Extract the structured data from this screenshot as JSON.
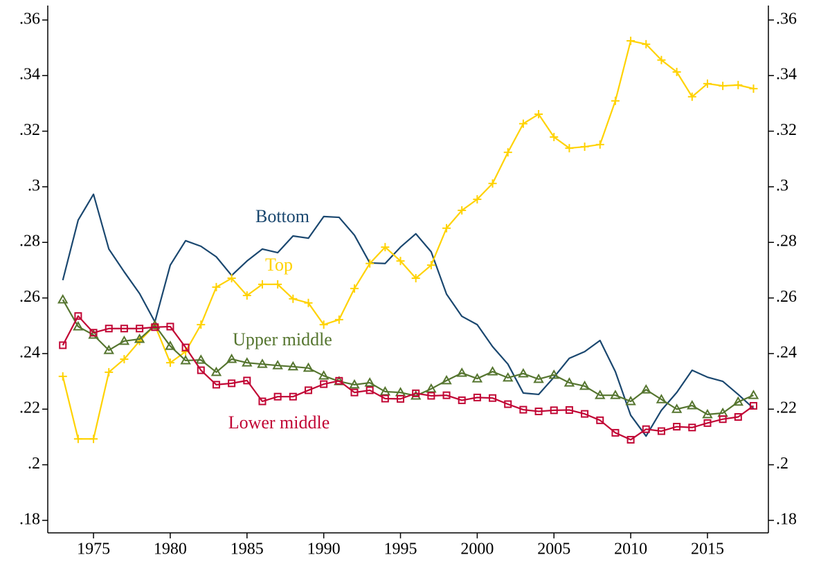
{
  "chart_data": {
    "type": "line",
    "x": [
      1973,
      1974,
      1975,
      1976,
      1977,
      1978,
      1979,
      1980,
      1981,
      1982,
      1983,
      1984,
      1985,
      1986,
      1987,
      1988,
      1989,
      1990,
      1991,
      1992,
      1993,
      1994,
      1995,
      1996,
      1997,
      1998,
      1999,
      2000,
      2001,
      2002,
      2003,
      2004,
      2005,
      2006,
      2007,
      2008,
      2009,
      2010,
      2011,
      2012,
      2013,
      2014,
      2015,
      2016,
      2017,
      2018
    ],
    "series": [
      {
        "name": "Bottom",
        "color": "#1a476f",
        "marker": "none",
        "values": [
          0.2664,
          0.288,
          0.2973,
          0.2776,
          0.2694,
          0.2616,
          0.2514,
          0.2718,
          0.2806,
          0.2786,
          0.2748,
          0.2681,
          0.2733,
          0.2776,
          0.2763,
          0.2823,
          0.2815,
          0.2893,
          0.289,
          0.2826,
          0.2726,
          0.2724,
          0.2783,
          0.2831,
          0.2766,
          0.2614,
          0.2534,
          0.2504,
          0.2425,
          0.2362,
          0.2258,
          0.2253,
          0.2315,
          0.2383,
          0.2407,
          0.2447,
          0.2335,
          0.2178,
          0.2103,
          0.2196,
          0.226,
          0.234,
          0.2315,
          0.23,
          0.2253,
          0.2203
        ]
      },
      {
        "name": "Top",
        "color": "#ffd200",
        "marker": "plus",
        "values": [
          0.2318,
          0.2093,
          0.2093,
          0.2333,
          0.238,
          0.2445,
          0.2502,
          0.2367,
          0.2407,
          0.2504,
          0.2639,
          0.2671,
          0.2609,
          0.2649,
          0.2649,
          0.2597,
          0.2582,
          0.2504,
          0.2522,
          0.2634,
          0.2724,
          0.2783,
          0.2733,
          0.2671,
          0.2718,
          0.2851,
          0.2915,
          0.2955,
          0.3012,
          0.3124,
          0.3227,
          0.3261,
          0.3179,
          0.3139,
          0.3144,
          0.3152,
          0.3309,
          0.3525,
          0.3513,
          0.3456,
          0.3413,
          0.3324,
          0.3371,
          0.3363,
          0.3366,
          0.3353
        ]
      },
      {
        "name": "Upper middle",
        "color": "#55752f",
        "marker": "triangle",
        "values": [
          0.2594,
          0.2497,
          0.2467,
          0.2412,
          0.2445,
          0.2452,
          0.2502,
          0.2427,
          0.2375,
          0.2377,
          0.2333,
          0.238,
          0.2367,
          0.2362,
          0.2357,
          0.2353,
          0.2348,
          0.232,
          0.23,
          0.2288,
          0.2295,
          0.2263,
          0.226,
          0.2248,
          0.2273,
          0.2303,
          0.233,
          0.231,
          0.2335,
          0.2313,
          0.2328,
          0.2308,
          0.2323,
          0.2295,
          0.2283,
          0.225,
          0.225,
          0.2228,
          0.227,
          0.2235,
          0.22,
          0.2213,
          0.2181,
          0.2186,
          0.2226,
          0.225
        ]
      },
      {
        "name": "Lower middle",
        "color": "#c10534",
        "marker": "square",
        "values": [
          0.243,
          0.2535,
          0.2475,
          0.249,
          0.249,
          0.249,
          0.2495,
          0.2497,
          0.2422,
          0.234,
          0.2288,
          0.2293,
          0.2303,
          0.2228,
          0.2245,
          0.2245,
          0.2268,
          0.229,
          0.2302,
          0.226,
          0.2268,
          0.2238,
          0.2237,
          0.2257,
          0.2248,
          0.225,
          0.2232,
          0.2242,
          0.224,
          0.2218,
          0.2198,
          0.2192,
          0.2196,
          0.2197,
          0.2183,
          0.216,
          0.2115,
          0.209,
          0.2128,
          0.2121,
          0.2137,
          0.2134,
          0.215,
          0.2164,
          0.2172,
          0.2212
        ]
      }
    ],
    "xlim": [
      1972.02,
      2018.97
    ],
    "xticks": [
      1975,
      1980,
      1985,
      1990,
      1995,
      2000,
      2005,
      2010,
      2015
    ],
    "ylim": [
      0.1755,
      0.3652
    ],
    "yticks": [
      {
        "value": 0.18,
        "label": ".18"
      },
      {
        "value": 0.2,
        "label": ".2"
      },
      {
        "value": 0.22,
        "label": ".22"
      },
      {
        "value": 0.24,
        "label": ".24"
      },
      {
        "value": 0.26,
        "label": ".26"
      },
      {
        "value": 0.28,
        "label": ".28"
      },
      {
        "value": 0.3,
        "label": ".3"
      },
      {
        "value": 0.32,
        "label": ".32"
      },
      {
        "value": 0.34,
        "label": ".34"
      },
      {
        "value": 0.36,
        "label": ".36"
      }
    ],
    "y2lim": [
      0.1755,
      0.3652
    ],
    "y2ticks": [
      {
        "value": 0.18,
        "label": ".18"
      },
      {
        "value": 0.2,
        "label": ".2"
      },
      {
        "value": 0.22,
        "label": ".22"
      },
      {
        "value": 0.24,
        "label": ".24"
      },
      {
        "value": 0.26,
        "label": ".26"
      },
      {
        "value": 0.28,
        "label": ".28"
      },
      {
        "value": 0.3,
        "label": ".3"
      },
      {
        "value": 0.32,
        "label": ".32"
      },
      {
        "value": 0.34,
        "label": ".34"
      },
      {
        "value": 0.36,
        "label": ".36"
      }
    ],
    "grid": false
  }
}
